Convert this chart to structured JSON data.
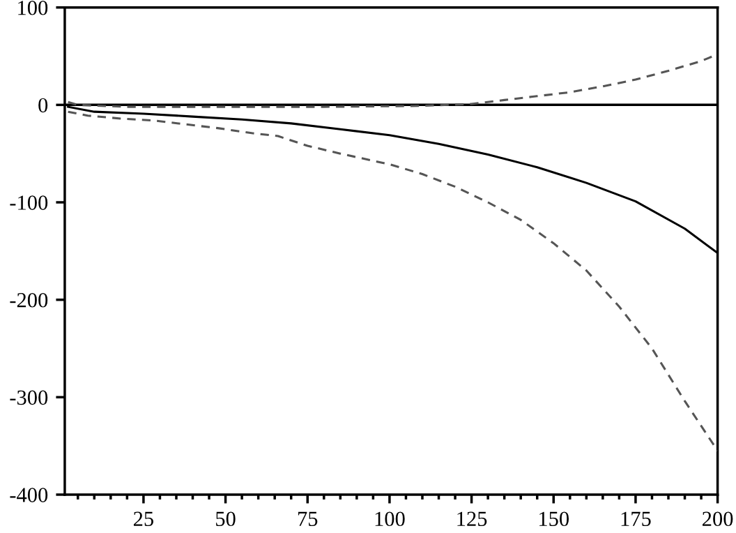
{
  "chart_data": {
    "type": "line",
    "xlim": [
      1,
      200
    ],
    "xticks": [
      25,
      50,
      75,
      100,
      125,
      150,
      175,
      200
    ],
    "ylim": [
      -400,
      100
    ],
    "yticks": [
      -400,
      -300,
      -200,
      -100,
      0,
      100
    ],
    "grid": false,
    "legend": false,
    "marker": "none",
    "ref_lines": [
      {
        "axis": "y",
        "value": 0,
        "color": "#000000",
        "line_style": "solid"
      }
    ],
    "series": [
      {
        "color": "#000000",
        "line_style": "solid",
        "x": [
          2,
          10,
          25,
          40,
          55,
          70,
          85,
          100,
          115,
          130,
          145,
          160,
          175,
          190,
          200
        ],
        "values": [
          -2,
          -7,
          -9,
          -12,
          -15,
          -19,
          -25,
          -31,
          -40,
          -51,
          -64,
          -80,
          -99,
          -127,
          -152
        ]
      },
      {
        "color": "#555555",
        "line_style": "dashed",
        "x": [
          2,
          8,
          18,
          28,
          38,
          48,
          58,
          66,
          75,
          85,
          100,
          110,
          120,
          130,
          140,
          150,
          160,
          170,
          180,
          190,
          200
        ],
        "values": [
          -7,
          -11,
          -14,
          -16,
          -20,
          -24,
          -29,
          -32,
          -42,
          -50,
          -61,
          -71,
          -84,
          -100,
          -118,
          -142,
          -170,
          -207,
          -250,
          -304,
          -355
        ]
      },
      {
        "color": "#555555",
        "line_style": "dashed",
        "x": [
          2,
          5,
          20,
          50,
          80,
          110,
          125,
          135,
          145,
          155,
          165,
          175,
          185,
          195,
          200
        ],
        "values": [
          3,
          0,
          -2,
          -2,
          -2,
          -1,
          1,
          5,
          9,
          13,
          19,
          26,
          35,
          45,
          52
        ]
      }
    ]
  }
}
